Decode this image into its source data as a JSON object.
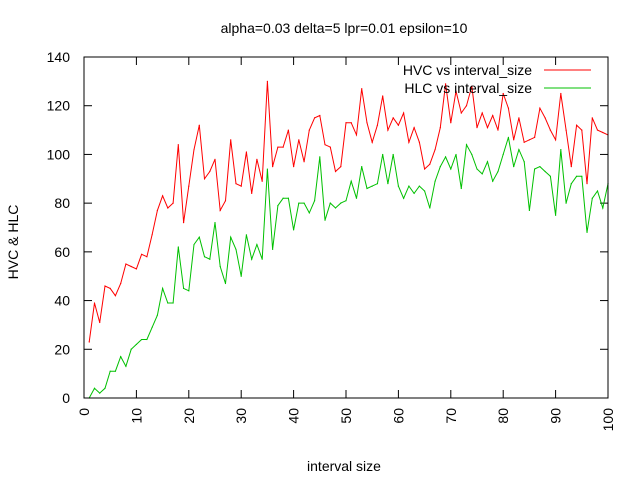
{
  "chart_data": {
    "type": "line",
    "title": "alpha=0.03 delta=5 lpr=0.01 epsilon=10",
    "xlabel": "interval size",
    "ylabel": "HVC & HLC",
    "xlim": [
      0,
      100
    ],
    "ylim": [
      0,
      140
    ],
    "x_ticks": [
      0,
      10,
      20,
      30,
      40,
      50,
      60,
      70,
      80,
      90,
      100
    ],
    "y_ticks": [
      0,
      20,
      40,
      60,
      80,
      100,
      120,
      140
    ],
    "grid": false,
    "legend_position": "top-right",
    "x": [
      1,
      2,
      3,
      4,
      5,
      6,
      7,
      8,
      9,
      10,
      11,
      12,
      13,
      14,
      15,
      16,
      17,
      18,
      19,
      20,
      21,
      22,
      23,
      24,
      25,
      26,
      27,
      28,
      29,
      30,
      31,
      32,
      33,
      34,
      35,
      36,
      37,
      38,
      39,
      40,
      41,
      42,
      43,
      44,
      45,
      46,
      47,
      48,
      49,
      50,
      51,
      52,
      53,
      54,
      55,
      56,
      57,
      58,
      59,
      60,
      61,
      62,
      63,
      64,
      65,
      66,
      67,
      68,
      69,
      70,
      71,
      72,
      73,
      74,
      75,
      76,
      77,
      78,
      79,
      80,
      81,
      82,
      83,
      84,
      85,
      86,
      87,
      88,
      89,
      90,
      91,
      92,
      93,
      94,
      95,
      96,
      97,
      98,
      99,
      100
    ],
    "series": [
      {
        "name": "HVC vs interval_size",
        "color": "#ff0000",
        "values": [
          23,
          39,
          31,
          46,
          45,
          42,
          47,
          55,
          54,
          53,
          59,
          58,
          67,
          77,
          83,
          78,
          80,
          104,
          72,
          87,
          102,
          112,
          90,
          93,
          98,
          77,
          81,
          106,
          88,
          87,
          101,
          84,
          98,
          89,
          130,
          95,
          103,
          103,
          110,
          95,
          106,
          97,
          110,
          115,
          116,
          104,
          103,
          93,
          95,
          113,
          113,
          108,
          127,
          113,
          105,
          112,
          124,
          110,
          115,
          112,
          117,
          105,
          111,
          105,
          94,
          96,
          102,
          111,
          129,
          113,
          126,
          117,
          120,
          128,
          111,
          117,
          111,
          116,
          110,
          125,
          119,
          106,
          115,
          105,
          106,
          107,
          119,
          115,
          110,
          106,
          125,
          110,
          95,
          112,
          110,
          88,
          115,
          110,
          109,
          108
        ]
      },
      {
        "name": "HLC vs interval_size",
        "color": "#00c000",
        "values": [
          0,
          4,
          2,
          4,
          11,
          11,
          17,
          13,
          20,
          22,
          24,
          24,
          29,
          34,
          45,
          39,
          39,
          62,
          45,
          44,
          63,
          66,
          58,
          57,
          72,
          54,
          47,
          66,
          61,
          50,
          67,
          57,
          63,
          57,
          94,
          61,
          79,
          82,
          82,
          69,
          80,
          80,
          76,
          81,
          99,
          73,
          80,
          78,
          80,
          81,
          89,
          82,
          95,
          86,
          87,
          88,
          100,
          88,
          100,
          87,
          82,
          87,
          84,
          87,
          85,
          78,
          89,
          95,
          99,
          94,
          100,
          86,
          104,
          100,
          94,
          92,
          97,
          89,
          93,
          100,
          107,
          95,
          102,
          97,
          77,
          94,
          95,
          93,
          91,
          75,
          102,
          80,
          88,
          91,
          91,
          68,
          82,
          85,
          78,
          88
        ]
      }
    ]
  }
}
